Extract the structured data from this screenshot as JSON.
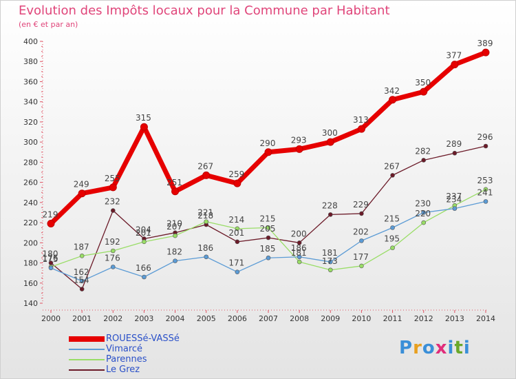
{
  "title": "Evolution des Impôts locaux pour la Commune par Habitant",
  "subtitle": "(en € et par an)",
  "logo": {
    "letters": [
      "P",
      "r",
      "o",
      "x",
      "i",
      "t",
      "i"
    ],
    "colors": [
      "#3a8fd8",
      "#e8a020",
      "#3a8fd8",
      "#e02d7a",
      "#3a8fd8",
      "#6aa82a",
      "#3a8fd8"
    ]
  },
  "chart_data": {
    "type": "line",
    "title": "Evolution des Impôts locaux pour la Commune par Habitant",
    "ylabel": "(en € et par an)",
    "xlabel": "",
    "ylim": [
      140,
      400
    ],
    "yticks": [
      "140",
      "160",
      "180",
      "200",
      "220",
      "240",
      "260",
      "280",
      "300",
      "320",
      "340",
      "360",
      "380",
      "400"
    ],
    "categories": [
      "2000",
      "2001",
      "2002",
      "2003",
      "2004",
      "2005",
      "2006",
      "2007",
      "2008",
      "2009",
      "2010",
      "2011",
      "2012",
      "2013",
      "2014"
    ],
    "series": [
      {
        "name": "ROUESSé-VASSé",
        "color": "#e60000",
        "values": [
          219,
          249,
          255,
          315,
          251,
          267,
          259,
          290,
          293,
          300,
          313,
          342,
          350,
          377,
          389
        ],
        "labels": [
          "219",
          "249",
          "255",
          "315",
          "251",
          "267",
          "259",
          "290",
          "293",
          "300",
          "313",
          "342",
          "350",
          "377",
          "389"
        ]
      },
      {
        "name": "Vimarcé",
        "color": "#5b9bd5",
        "values": [
          175,
          162,
          176,
          166,
          182,
          186,
          171,
          185,
          186,
          181,
          202,
          215,
          230,
          234,
          241
        ],
        "labels": [
          "175",
          "162",
          "176",
          "166",
          "182",
          "186",
          "171",
          "185",
          "186",
          "181",
          "202",
          "215",
          "230",
          "234",
          "241"
        ]
      },
      {
        "name": "Parennes",
        "color": "#99dd66",
        "values": [
          176,
          187,
          192,
          201,
          207,
          221,
          214,
          215,
          181,
          173,
          177,
          195,
          220,
          237,
          253
        ],
        "labels": [
          "176",
          "187",
          "192",
          "201",
          "207",
          "221",
          "214",
          "215",
          "181",
          "173",
          "177",
          "195",
          "220",
          "237",
          "253"
        ]
      },
      {
        "name": "Le Grez",
        "color": "#6b1a28",
        "values": [
          180,
          154,
          232,
          204,
          210,
          218,
          201,
          205,
          200,
          228,
          229,
          267,
          282,
          289,
          296
        ],
        "labels": [
          "180",
          "154",
          "232",
          "204",
          "210",
          "218",
          "201",
          "205",
          "200",
          "228",
          "229",
          "267",
          "282",
          "289",
          "296"
        ]
      }
    ],
    "legend_position": "bottom-left",
    "grid": false
  }
}
